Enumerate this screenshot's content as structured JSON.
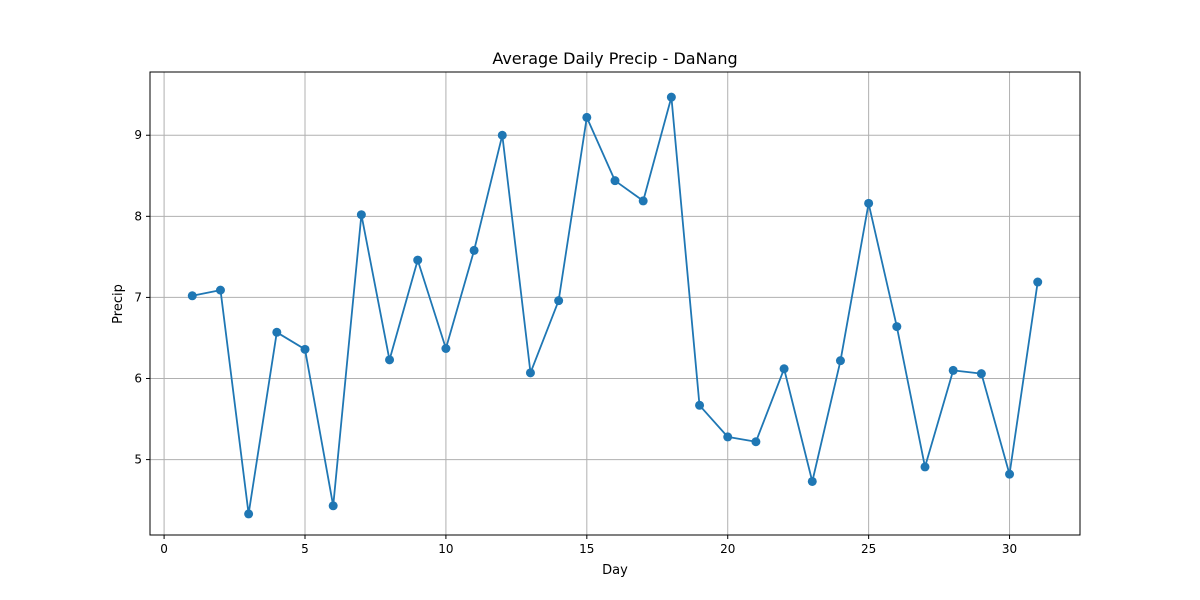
{
  "chart_data": {
    "type": "line",
    "title": "Average Daily Precip - DaNang",
    "xlabel": "Day",
    "ylabel": "Precip",
    "xlim": [
      -0.5,
      32.5
    ],
    "ylim": [
      4.07,
      9.78
    ],
    "x_ticks": [
      0,
      5,
      10,
      15,
      20,
      25,
      30
    ],
    "y_ticks": [
      5,
      6,
      7,
      8,
      9
    ],
    "grid": true,
    "series": [
      {
        "color": "#1f77b4",
        "marker": "circle",
        "x": [
          1,
          2,
          3,
          4,
          5,
          6,
          7,
          8,
          9,
          10,
          11,
          12,
          13,
          14,
          15,
          16,
          17,
          18,
          19,
          20,
          21,
          22,
          23,
          24,
          25,
          26,
          27,
          28,
          29,
          30,
          31
        ],
        "y": [
          7.02,
          7.09,
          4.33,
          6.57,
          6.36,
          4.43,
          8.02,
          6.23,
          7.46,
          6.37,
          7.58,
          9.0,
          6.07,
          6.96,
          9.22,
          8.44,
          8.19,
          9.47,
          5.67,
          5.28,
          5.22,
          6.12,
          4.73,
          6.22,
          8.16,
          6.64,
          4.91,
          6.1,
          6.06,
          4.82,
          7.19
        ]
      }
    ]
  }
}
